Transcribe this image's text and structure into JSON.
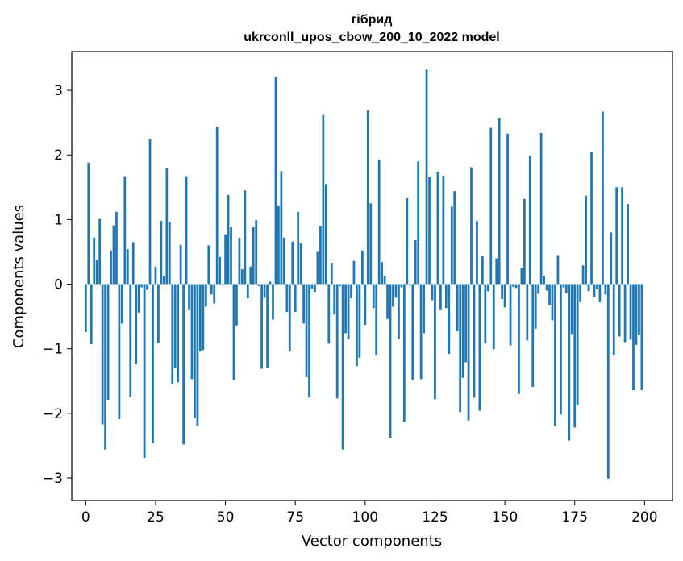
{
  "chart_data": {
    "type": "bar",
    "title": "гібрид",
    "subtitle": "ukrconll_upos_cbow_200_10_2022 model",
    "xlabel": "Vector components",
    "ylabel": "Components values",
    "xlim": [
      -5,
      210
    ],
    "ylim": [
      -3.35,
      3.6
    ],
    "xticks": [
      0,
      25,
      50,
      75,
      100,
      125,
      150,
      175,
      200
    ],
    "yticks": [
      -3,
      -2,
      -1,
      0,
      1,
      2,
      3
    ],
    "grid": false,
    "bar_color": "#1f77b4",
    "values": [
      -0.74,
      1.88,
      -0.93,
      0.72,
      0.37,
      1.01,
      -2.17,
      -2.56,
      -1.79,
      0.52,
      0.91,
      1.12,
      -2.09,
      -0.61,
      1.67,
      0.54,
      -1.74,
      0.65,
      -1.24,
      -0.44,
      -0.05,
      -2.69,
      -0.09,
      2.24,
      -2.46,
      0.27,
      -0.91,
      0.98,
      0.13,
      1.8,
      0.96,
      -1.55,
      -1.3,
      -1.52,
      0.61,
      -2.48,
      1.67,
      -0.39,
      -1.47,
      -2.07,
      -2.19,
      -1.04,
      -1.02,
      -0.35,
      0.6,
      -0.16,
      -0.3,
      2.44,
      0.42,
      -0.02,
      0.77,
      1.38,
      0.88,
      -1.48,
      -0.64,
      0.72,
      0.23,
      1.45,
      -0.22,
      0.27,
      0.88,
      0.99,
      -0.03,
      -1.31,
      -0.21,
      -1.29,
      0.04,
      -0.55,
      3.21,
      1.22,
      1.75,
      0.72,
      -0.43,
      -1.04,
      0.66,
      -0.43,
      1.12,
      0.63,
      -0.61,
      -1.44,
      -1.75,
      -0.07,
      -0.12,
      0.5,
      0.9,
      2.62,
      1.55,
      -0.92,
      0.33,
      -0.47,
      -1.77,
      -0.03,
      -2.56,
      -0.76,
      -0.85,
      -0.22,
      0.36,
      -1.27,
      -1.14,
      0.52,
      -0.63,
      2.69,
      1.25,
      -0.37,
      -1.1,
      1.93,
      0.34,
      0.13,
      -0.54,
      -2.38,
      -0.35,
      -0.21,
      -0.85,
      -0.05,
      -2.13,
      1.33,
      -0.02,
      -1.48,
      0.68,
      1.9,
      -1.47,
      -0.76,
      3.32,
      1.66,
      -0.25,
      -1.78,
      1.74,
      -0.39,
      1.68,
      -0.37,
      -1.08,
      1.2,
      1.44,
      -0.73,
      -1.98,
      -1.45,
      -1.21,
      -2.11,
      1.81,
      -1.76,
      0.98,
      -1.96,
      0.43,
      -0.92,
      -0.11,
      2.42,
      -1.01,
      0.4,
      2.57,
      -0.23,
      -0.36,
      2.33,
      -0.95,
      -0.04,
      -0.06,
      -1.7,
      0.25,
      1.32,
      -0.87,
      1.99,
      -1.59,
      -0.69,
      -0.15,
      2.34,
      0.13,
      -0.1,
      -0.32,
      -0.56,
      -2.2,
      0.45,
      -2.02,
      -0.05,
      -0.14,
      -2.42,
      -0.77,
      -2.22,
      -1.87,
      -0.28,
      0.29,
      1.37,
      -0.11,
      2.04,
      -0.2,
      -0.08,
      -0.28,
      2.67,
      -0.16,
      -3.01,
      0.8,
      -1.1,
      1.5,
      -0.81,
      1.5,
      -0.9,
      1.24,
      -0.86,
      -1.64,
      -0.94,
      -0.78,
      -1.64
    ]
  }
}
